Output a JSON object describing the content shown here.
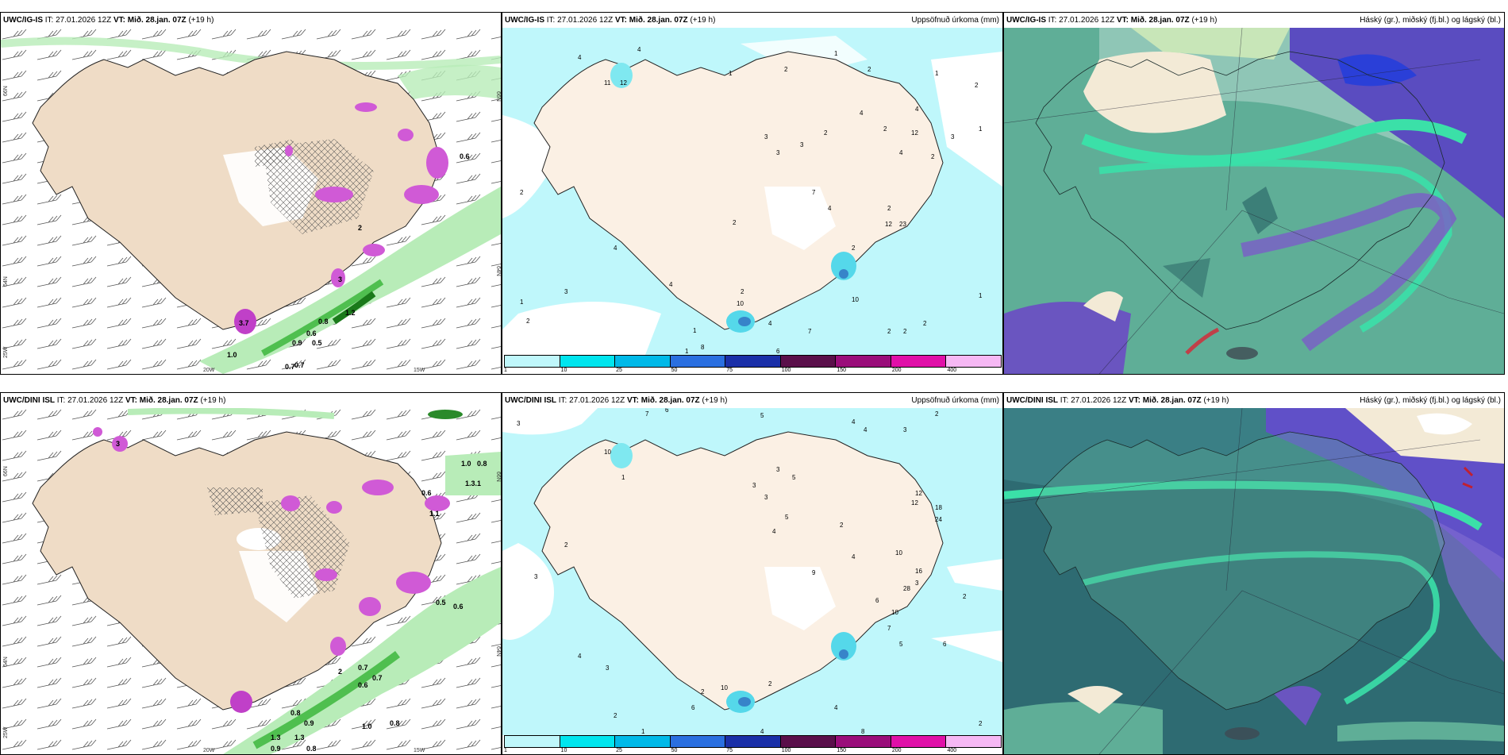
{
  "panels": {
    "ig_barbs": {
      "model": "UWC/IG-IS",
      "it": "IT: 27.01.2026 12Z",
      "vt": "VT: Mið. 28.jan. 07Z",
      "lead": "(+19 h)",
      "right": ""
    },
    "ig_precip": {
      "model": "UWC/IG-IS",
      "it": "IT: 27.01.2026 12Z",
      "vt": "VT: Mið. 28.jan. 07Z",
      "lead": "(+19 h)",
      "right": "Uppsöfnuð úrkoma (mm)"
    },
    "ig_cloud": {
      "model": "UWC/IG-IS",
      "it": "IT: 27.01.2026 12Z",
      "vt": "VT: Mið. 28.jan. 07Z",
      "lead": "(+19 h)",
      "right": "Háský (gr.), miðský (fj.bl.) og lágský (bl.)"
    },
    "dini_barbs": {
      "model": "UWC/DINI ISL",
      "it": "IT: 27.01.2026 12Z",
      "vt": "VT: Mið. 28.jan. 07Z",
      "lead": "(+19 h)",
      "right": ""
    },
    "dini_precip": {
      "model": "UWC/DINI ISL",
      "it": "IT: 27.01.2026 12Z",
      "vt": "VT: Mið. 28.jan. 07Z",
      "lead": "(+19 h)",
      "right": "Uppsöfnuð úrkoma (mm)"
    },
    "dini_cloud": {
      "model": "UWC/DINI ISL",
      "it": "IT: 27.01.2026 12Z",
      "vt": "VT: Mið. 28.jan. 07Z",
      "lead": "(+19 h)",
      "right": "Háský (gr.), miðský (fj.bl.) og lágský (bl.)"
    }
  },
  "axes": {
    "lat66": "66N",
    "lat64": "64N",
    "lat25w": "25W",
    "lon20": "20W",
    "lon15": "15W"
  },
  "colorbar": {
    "ticks": [
      "1",
      "10",
      "25",
      "50",
      "75",
      "100",
      "150",
      "200",
      "400"
    ],
    "colors": [
      "#bff7fb",
      "#00e5ee",
      "#00b9e8",
      "#2a6fe0",
      "#1a2fa8",
      "#5a0f4a",
      "#9a0d7a",
      "#e010a8",
      "#f6b8f4"
    ]
  },
  "labels": {
    "ig_barbs": [
      "0.6",
      "3",
      "3.7",
      "1.0",
      "0.8",
      "0.6",
      "0.9",
      "0.5",
      "0.7",
      "1.2",
      "0.7",
      "2"
    ],
    "dini_barbs": [
      "3",
      "1.0",
      "0.8",
      "1.3.1",
      "1.1",
      "0.6",
      "0.5",
      "0.6",
      "0.7",
      "0.7",
      "0.6",
      "0.8",
      "0.9",
      "1.0",
      "0.8",
      "1.3",
      "1.3",
      "0.9",
      "0.8",
      "2"
    ],
    "ig_precip": [
      "4",
      "4",
      "1",
      "2",
      "11",
      "12",
      "1",
      "2",
      "3",
      "3",
      "3",
      "2",
      "4",
      "2",
      "4",
      "4",
      "1",
      "12",
      "2",
      "3",
      "1",
      "2",
      "2",
      "3",
      "4",
      "1",
      "2",
      "1",
      "1",
      "4",
      "2",
      "2",
      "1",
      "10",
      "2",
      "4",
      "2",
      "12",
      "23",
      "4",
      "7",
      "10",
      "2",
      "2",
      "2",
      "8",
      "6",
      "7"
    ],
    "dini_precip": [
      "3",
      "7",
      "6",
      "5",
      "4",
      "4",
      "3",
      "2",
      "10",
      "12",
      "1",
      "3",
      "3",
      "3",
      "5",
      "12",
      "18",
      "24",
      "16",
      "3",
      "2",
      "4",
      "5",
      "10",
      "2",
      "4",
      "9",
      "3",
      "6",
      "7",
      "10",
      "28",
      "5",
      "2",
      "6",
      "4",
      "3",
      "2",
      "10",
      "4",
      "8",
      "2",
      "2",
      "1",
      "2",
      "4",
      "6"
    ]
  }
}
